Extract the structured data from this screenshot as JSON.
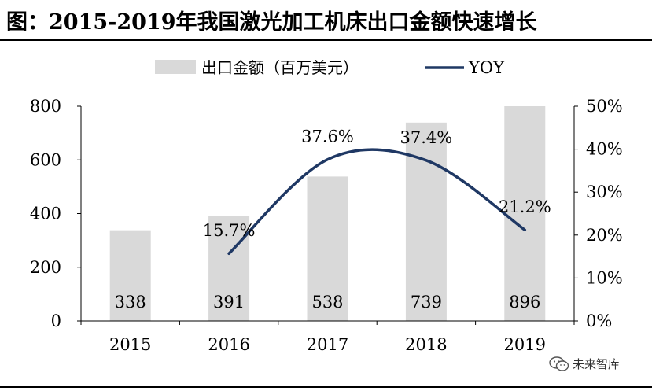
{
  "title": "图：2015-2019年我国激光加工机床出口金额快速增长",
  "watermark": "未来智库",
  "chart_data": {
    "type": "bar",
    "categories": [
      "2015",
      "2016",
      "2017",
      "2018",
      "2019"
    ],
    "series": [
      {
        "name": "出口金额（百万美元）",
        "type": "bar",
        "values": [
          338,
          391,
          538,
          739,
          896
        ],
        "color": "#d9d9d9",
        "axis": "left"
      },
      {
        "name": "YOY",
        "type": "line",
        "values": [
          null,
          15.7,
          37.6,
          37.4,
          21.2
        ],
        "labels": [
          "",
          "15.7%",
          "37.6%",
          "37.4%",
          "21.2%"
        ],
        "color": "#1f3864",
        "axis": "right"
      }
    ],
    "bar_labels": [
      "338",
      "391",
      "538",
      "739",
      "896"
    ],
    "ylim_left": [
      0,
      800
    ],
    "yticks_left": [
      "0",
      "200",
      "400",
      "600",
      "800"
    ],
    "ylim_right": [
      0,
      50
    ],
    "yticks_right": [
      "0%",
      "10%",
      "20%",
      "30%",
      "40%",
      "50%"
    ],
    "legend_position": "top",
    "grid": false
  }
}
